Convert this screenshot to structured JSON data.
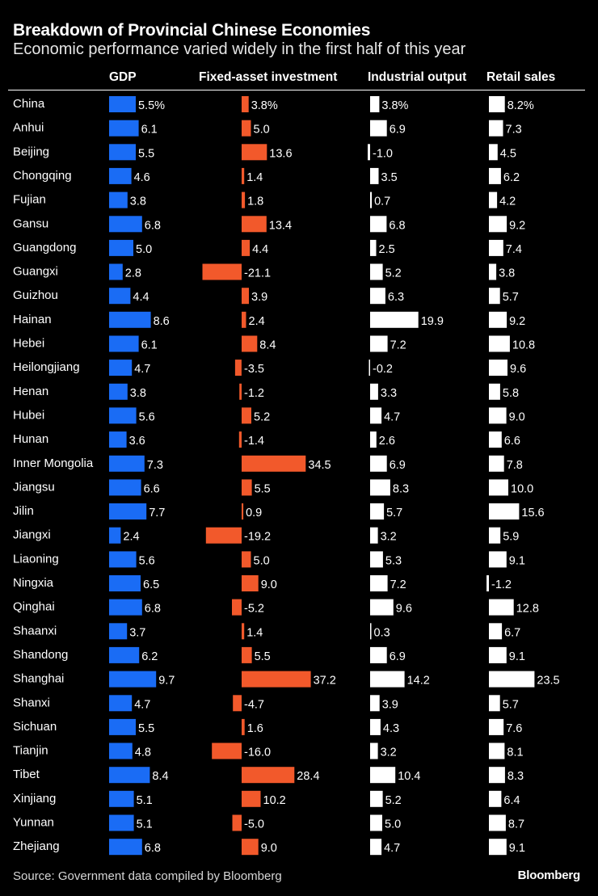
{
  "title": "Breakdown of Provincial Chinese Economies",
  "subtitle": "Economic performance varied widely in the first half of this year",
  "source": "Source: Government data compiled by Bloomberg",
  "brand": "Bloomberg",
  "colors": {
    "background": "#000000",
    "gdp": "#1a6cf5",
    "fixed_asset_investment": "#f2592b",
    "industrial_output": "#ffffff",
    "retail_sales": "#ffffff",
    "text": "#ffffff"
  },
  "chart_data": {
    "type": "bar",
    "title": "Breakdown of Provincial Chinese Economies",
    "subtitle": "Economic performance varied widely in the first half of this year",
    "categories": [
      "China",
      "Anhui",
      "Beijing",
      "Chongqing",
      "Fujian",
      "Gansu",
      "Guangdong",
      "Guangxi",
      "Guizhou",
      "Hainan",
      "Hebei",
      "Heilongjiang",
      "Henan",
      "Hubei",
      "Hunan",
      "Inner Mongolia",
      "Jiangsu",
      "Jilin",
      "Jiangxi",
      "Liaoning",
      "Ningxia",
      "Qinghai",
      "Shaanxi",
      "Shandong",
      "Shanghai",
      "Shanxi",
      "Sichuan",
      "Tianjin",
      "Tibet",
      "Xinjiang",
      "Yunnan",
      "Zhejiang"
    ],
    "series": [
      {
        "name": "GDP",
        "unit_first": "%",
        "values": [
          5.5,
          6.1,
          5.5,
          4.6,
          3.8,
          6.8,
          5.0,
          2.8,
          4.4,
          8.6,
          6.1,
          4.7,
          3.8,
          5.6,
          3.6,
          7.3,
          6.6,
          7.7,
          2.4,
          5.6,
          6.5,
          6.8,
          3.7,
          6.2,
          9.7,
          4.7,
          5.5,
          4.8,
          8.4,
          5.1,
          5.1,
          6.8
        ]
      },
      {
        "name": "Fixed-asset investment",
        "unit_first": "%",
        "values": [
          3.8,
          5.0,
          13.6,
          1.4,
          1.8,
          13.4,
          4.4,
          -21.1,
          3.9,
          2.4,
          8.4,
          -3.5,
          -1.2,
          5.2,
          -1.4,
          34.5,
          5.5,
          0.9,
          -19.2,
          5.0,
          9.0,
          -5.2,
          1.4,
          5.5,
          37.2,
          -4.7,
          1.6,
          -16.0,
          28.4,
          10.2,
          -5.0,
          9.0
        ]
      },
      {
        "name": "Industrial output",
        "unit_first": "%",
        "values": [
          3.8,
          6.9,
          -1.0,
          3.5,
          0.7,
          6.8,
          2.5,
          5.2,
          6.3,
          19.9,
          7.2,
          -0.2,
          3.3,
          4.7,
          2.6,
          6.9,
          8.3,
          5.7,
          3.2,
          5.3,
          7.2,
          9.6,
          0.3,
          6.9,
          14.2,
          3.9,
          4.3,
          3.2,
          10.4,
          5.2,
          5.0,
          4.7
        ]
      },
      {
        "name": "Retail sales",
        "unit_first": "%",
        "values": [
          8.2,
          7.3,
          4.5,
          6.2,
          4.2,
          9.2,
          7.4,
          3.8,
          5.7,
          9.2,
          10.8,
          9.6,
          5.8,
          9.0,
          6.6,
          7.8,
          10.0,
          15.6,
          5.9,
          9.1,
          -1.2,
          12.8,
          6.7,
          9.1,
          23.5,
          5.7,
          7.6,
          8.1,
          8.3,
          6.4,
          8.7,
          9.1
        ]
      }
    ]
  }
}
